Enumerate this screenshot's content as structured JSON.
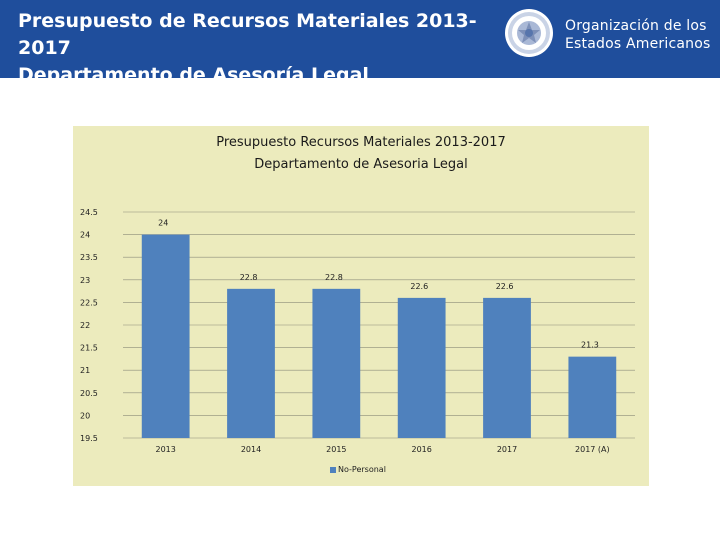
{
  "header": {
    "title_line1": "Presupuesto de Recursos Materiales 2013-2017",
    "title_line2": "Departamento de Asesoría Legal",
    "org_line1": "Organización de los",
    "org_line2": "Estados Americanos",
    "background_color": "#1f4e9c"
  },
  "chart_data": {
    "type": "bar",
    "title_line1": "Presupuesto Recursos Materiales 2013-2017",
    "title_line2": "Departamento de Asesoria Legal",
    "categories": [
      "2013",
      "2014",
      "2015",
      "2016",
      "2017",
      "2017 (A)"
    ],
    "series": [
      {
        "name": "No-Personal",
        "values": [
          24,
          22.8,
          22.8,
          22.6,
          22.6,
          21.3
        ]
      }
    ],
    "data_labels": [
      "24",
      "22.8",
      "22.8",
      "22.6",
      "22.6",
      "21.3"
    ],
    "ylim": [
      19.5,
      24.5
    ],
    "yticks": [
      19.5,
      20,
      20.5,
      21,
      21.5,
      22,
      22.5,
      23,
      23.5,
      24,
      24.5
    ],
    "ytick_labels": [
      "19.5",
      "20",
      "20.5",
      "21",
      "21.5",
      "22",
      "22.5",
      "23",
      "23.5",
      "24",
      "24.5"
    ],
    "grid": true,
    "legend_position": "bottom",
    "bar_color": "#4f81bd",
    "background_color": "#ecebbd"
  }
}
